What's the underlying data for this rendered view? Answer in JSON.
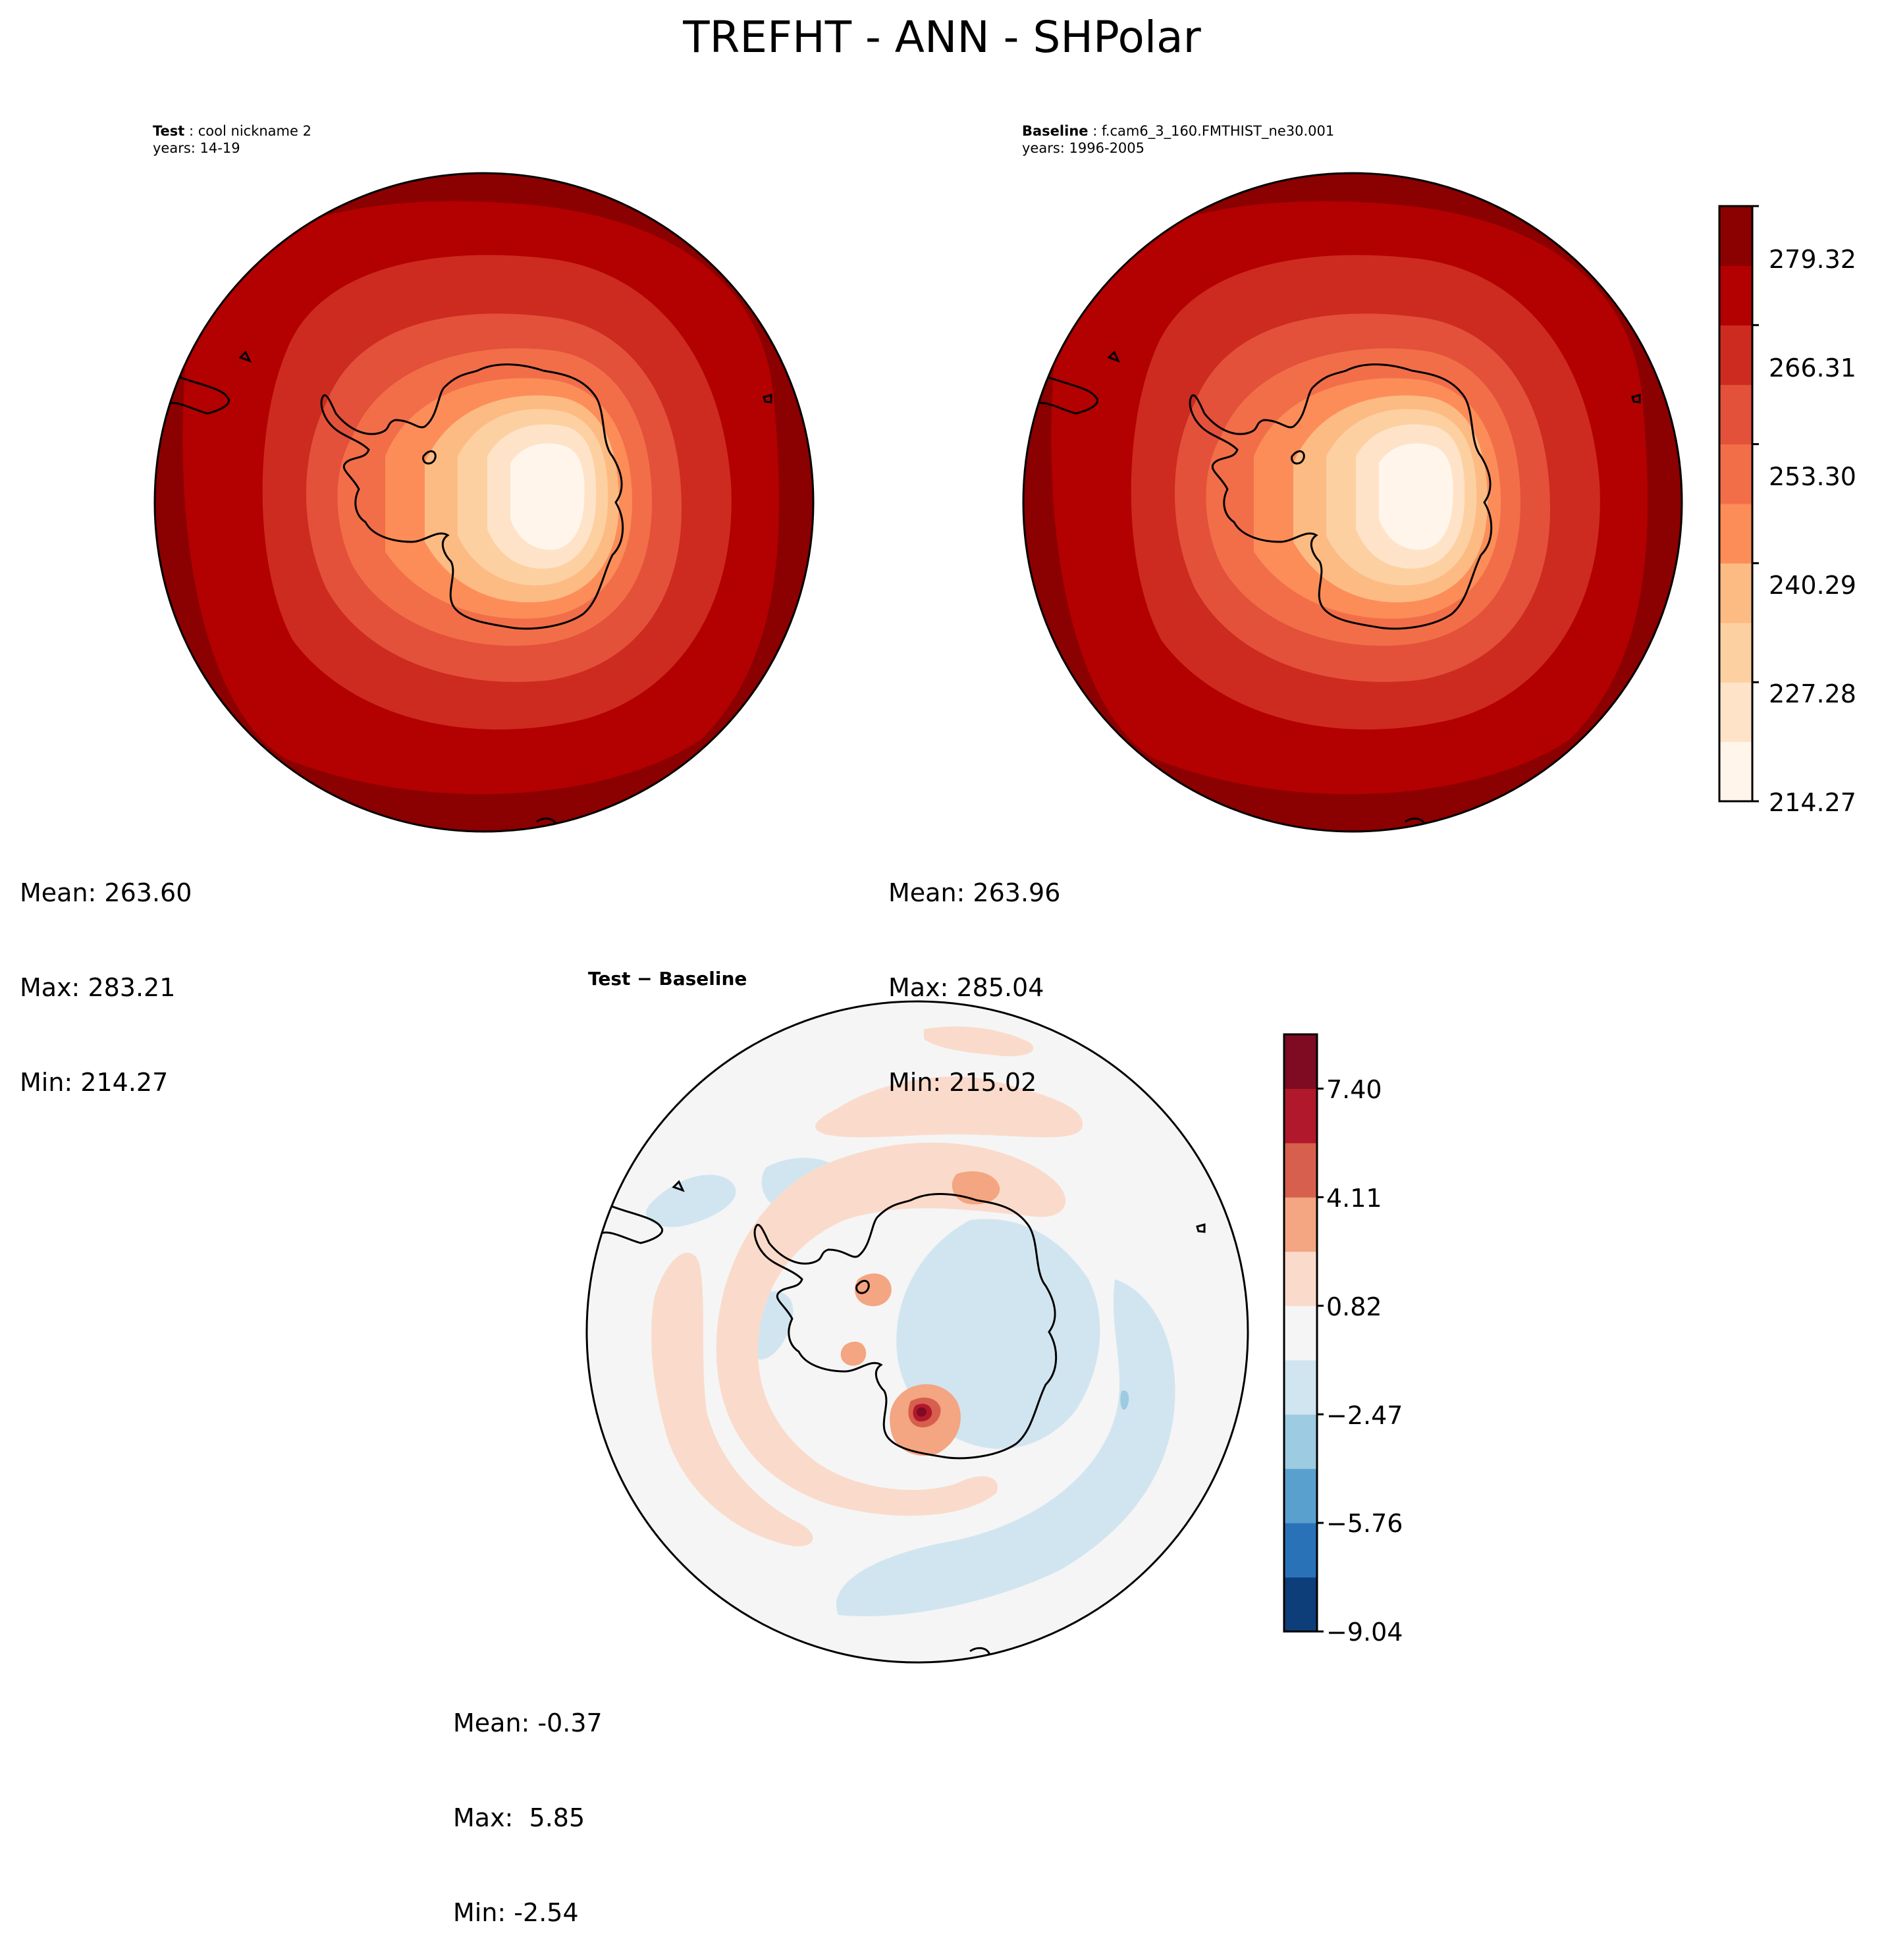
{
  "title": "TREFHT - ANN - SHPolar",
  "panels": [
    {
      "id": "test",
      "label": "Test",
      "sep": " : ",
      "name": "cool nickname 2",
      "years": "years: 14-19",
      "mean": "Mean: 263.60",
      "max": "Max: 283.21",
      "min": "Min: 214.27"
    },
    {
      "id": "baseline",
      "label": "Baseline",
      "sep": " : ",
      "name": "f.cam6_3_160.FMTHIST_ne30.001",
      "years": "years: 1996-2005",
      "mean": "Mean: 263.96",
      "max": "Max: 285.04",
      "min": "Min: 215.02"
    },
    {
      "id": "diff",
      "title": "Test − Baseline",
      "mean": "Mean: -0.37",
      "max": "Max:  5.85",
      "min": "Min: -2.54"
    }
  ],
  "colorbars": {
    "absolute": {
      "colormap": "Reds-like (pale cream to dark red)",
      "tick_labels": [
        "279.32",
        "266.31",
        "253.30",
        "240.29",
        "227.28",
        "214.27"
      ],
      "levels_low_to_high_colors": [
        "#fff5eb",
        "#fee3c8",
        "#fdd0a2",
        "#fdbb84",
        "#fc8d59",
        "#f26e48",
        "#e3513a",
        "#cd2b1f",
        "#b30000",
        "#8b0000"
      ]
    },
    "difference": {
      "colormap": "RdBu_r (blue to red, diverging)",
      "tick_labels": [
        "7.40",
        "4.11",
        "0.82",
        "−2.47",
        "−5.76",
        "−9.04"
      ],
      "levels_low_to_high_colors": [
        "#0d3e7a",
        "#2a72b8",
        "#5aa0cf",
        "#9ccbe2",
        "#d1e5f0",
        "#f5f5f5",
        "#fadbcb",
        "#f4a582",
        "#d6604d",
        "#b2182b",
        "#7e0b22"
      ]
    }
  }
}
